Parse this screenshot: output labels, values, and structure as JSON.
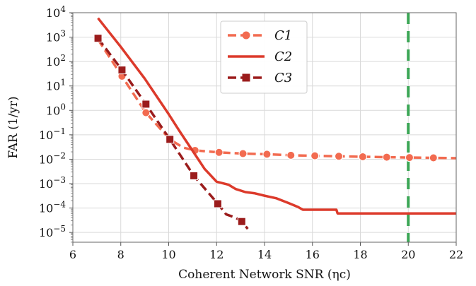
{
  "chart_data": {
    "type": "line",
    "xlabel": "Coherent Network SNR (ηc)",
    "ylabel": "FAR (1/yr)",
    "xlim": [
      6,
      22
    ],
    "ylim_log10": [
      -5.4,
      4
    ],
    "y_scale": "log",
    "grid": true,
    "legend_position": "top-center",
    "x_ticks": [
      "6",
      "8",
      "10",
      "12",
      "14",
      "16",
      "18",
      "20",
      "22"
    ],
    "y_ticks": [
      {
        "exp": 4,
        "label": "4"
      },
      {
        "exp": 3,
        "label": "3"
      },
      {
        "exp": 2,
        "label": "2"
      },
      {
        "exp": 1,
        "label": "1"
      },
      {
        "exp": 0,
        "label": "0"
      },
      {
        "exp": -1,
        "label": "−1"
      },
      {
        "exp": -2,
        "label": "−2"
      },
      {
        "exp": -3,
        "label": "−3"
      },
      {
        "exp": -4,
        "label": "−4"
      },
      {
        "exp": -5,
        "label": "−5"
      }
    ],
    "threshold_x": 20,
    "threshold_color": "#3aa655",
    "series": [
      {
        "name": "C1",
        "legend_label": "C1",
        "color": "#f26b50",
        "style": "dashed",
        "marker": "circle",
        "points": [
          [
            7.05,
            800
          ],
          [
            8.05,
            25
          ],
          [
            9.05,
            0.8
          ],
          [
            10.05,
            0.065
          ],
          [
            10.6,
            0.03
          ],
          [
            11.1,
            0.023
          ],
          [
            12.1,
            0.019
          ],
          [
            13.1,
            0.017
          ],
          [
            14.1,
            0.016
          ],
          [
            15.1,
            0.0145
          ],
          [
            16.1,
            0.0138
          ],
          [
            17.1,
            0.0132
          ],
          [
            18.1,
            0.0126
          ],
          [
            19.1,
            0.0121
          ],
          [
            20.05,
            0.0117
          ],
          [
            21.05,
            0.0114
          ],
          [
            22,
            0.011
          ]
        ],
        "markers": [
          [
            8.05,
            25
          ],
          [
            9.05,
            0.8
          ],
          [
            11.1,
            0.023
          ],
          [
            12.1,
            0.019
          ],
          [
            13.1,
            0.017
          ],
          [
            14.1,
            0.016
          ],
          [
            15.1,
            0.0145
          ],
          [
            16.1,
            0.0138
          ],
          [
            17.1,
            0.0132
          ],
          [
            18.1,
            0.0126
          ],
          [
            19.1,
            0.0121
          ],
          [
            20.05,
            0.0117
          ],
          [
            21.05,
            0.0114
          ]
        ]
      },
      {
        "name": "C2",
        "legend_label": "C2",
        "color": "#dc3a2b",
        "style": "solid",
        "marker": "none",
        "points": [
          [
            7.05,
            6000
          ],
          [
            8,
            400
          ],
          [
            9,
            20
          ],
          [
            10,
            0.7
          ],
          [
            10.5,
            0.12
          ],
          [
            11,
            0.022
          ],
          [
            11.5,
            0.004
          ],
          [
            12,
            0.0012
          ],
          [
            12.5,
            0.0009
          ],
          [
            12.8,
            0.0006
          ],
          [
            13.2,
            0.00045
          ],
          [
            13.6,
            0.0004
          ],
          [
            14,
            0.00032
          ],
          [
            14.5,
            0.00025
          ],
          [
            15,
            0.00016
          ],
          [
            15.4,
            0.00011
          ],
          [
            15.6,
            8.5e-05
          ],
          [
            16,
            8.5e-05
          ],
          [
            16.5,
            8.5e-05
          ],
          [
            17,
            8.5e-05
          ],
          [
            17.05,
            6e-05
          ],
          [
            18,
            6e-05
          ],
          [
            19,
            6e-05
          ],
          [
            20,
            6e-05
          ],
          [
            21,
            6e-05
          ],
          [
            22,
            6e-05
          ]
        ],
        "markers": []
      },
      {
        "name": "C3",
        "legend_label": "C3",
        "color": "#9b1c1c",
        "style": "dashed",
        "marker": "square",
        "points": [
          [
            7.05,
            900
          ],
          [
            8.05,
            45
          ],
          [
            9.05,
            1.8
          ],
          [
            10.05,
            0.065
          ],
          [
            11.05,
            0.0021
          ],
          [
            12.05,
            0.00015
          ],
          [
            12.4,
            5.5e-05
          ],
          [
            12.8,
            4e-05
          ],
          [
            13.05,
            2.8e-05
          ],
          [
            13.3,
            1.4e-05
          ]
        ],
        "markers": [
          [
            7.05,
            900
          ],
          [
            8.05,
            45
          ],
          [
            9.05,
            1.8
          ],
          [
            10.05,
            0.065
          ],
          [
            11.05,
            0.0021
          ],
          [
            12.05,
            0.00015
          ],
          [
            13.05,
            2.8e-05
          ]
        ]
      }
    ]
  }
}
